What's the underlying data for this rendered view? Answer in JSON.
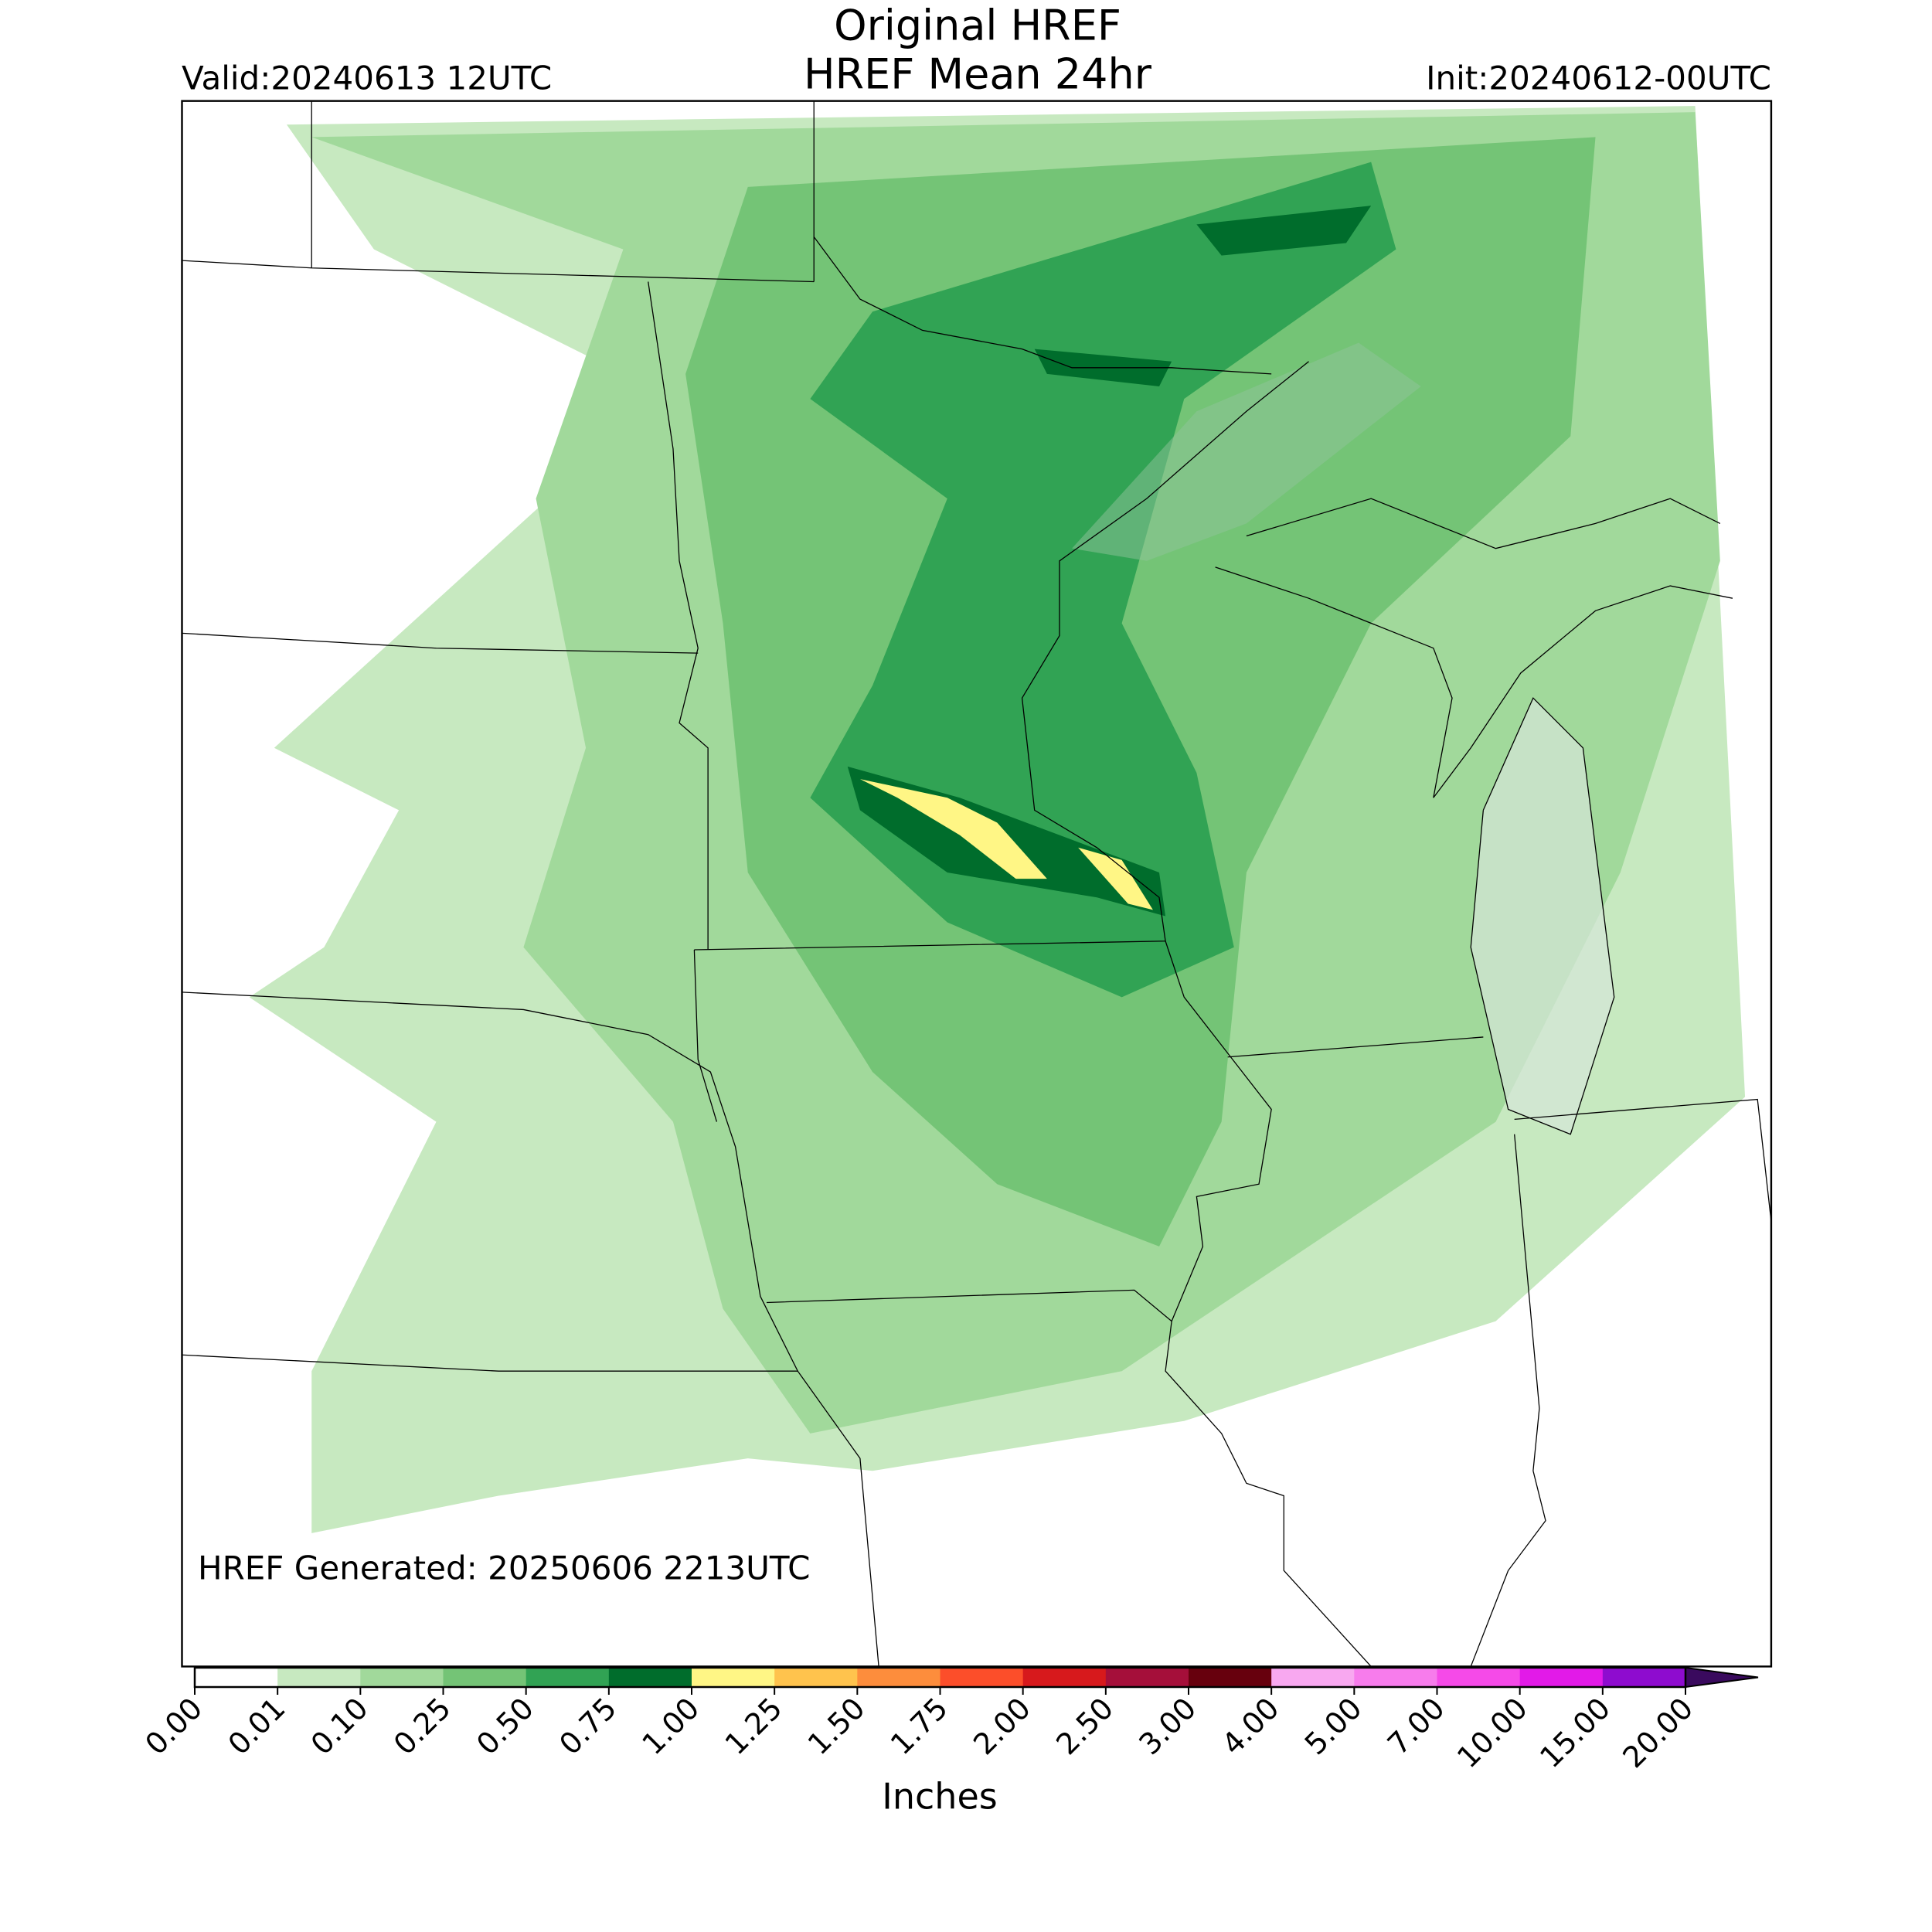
{
  "header": {
    "title": [
      "Original HREF",
      "HREF Mean 24hr"
    ],
    "valid": "Valid:20240613 12UTC",
    "init": "Init:20240612-00UTC"
  },
  "annotation": "HREF Generated: 20250606 2213UTC",
  "colorbar": {
    "label": "Inches",
    "colors": [
      "#ffffff",
      "#c7e9c0",
      "#a1d99b",
      "#74c476",
      "#31a354",
      "#006d2c",
      "#fff685",
      "#ffc34d",
      "#fd8d3c",
      "#fc4e2a",
      "#d7191c",
      "#a50f3a",
      "#67000d",
      "#f8a8f0",
      "#f77cec",
      "#f54ae8",
      "#e21ae8",
      "#8e0ccf"
    ],
    "extend_color": "#3a0a5e",
    "ticks": [
      {
        "value": 0,
        "label": "0.00"
      },
      {
        "value": 0.01,
        "label": "0.01"
      },
      {
        "value": 0.1,
        "label": "0.10"
      },
      {
        "value": 0.25,
        "label": "0.25"
      },
      {
        "value": 0.5,
        "label": "0.50"
      },
      {
        "value": 0.75,
        "label": "0.75"
      },
      {
        "value": 1,
        "label": "1.00"
      },
      {
        "value": 1.25,
        "label": "1.25"
      },
      {
        "value": 1.5,
        "label": "1.50"
      },
      {
        "value": 1.75,
        "label": "1.75"
      },
      {
        "value": 2,
        "label": "2.00"
      },
      {
        "value": 2.5,
        "label": "2.50"
      },
      {
        "value": 3,
        "label": "3.00"
      },
      {
        "value": 4,
        "label": "4.00"
      },
      {
        "value": 5,
        "label": "5.00"
      },
      {
        "value": 7,
        "label": "7.00"
      },
      {
        "value": 10,
        "label": "10.00"
      },
      {
        "value": 15,
        "label": "15.00"
      },
      {
        "value": 20,
        "label": "20.00"
      }
    ]
  }
}
